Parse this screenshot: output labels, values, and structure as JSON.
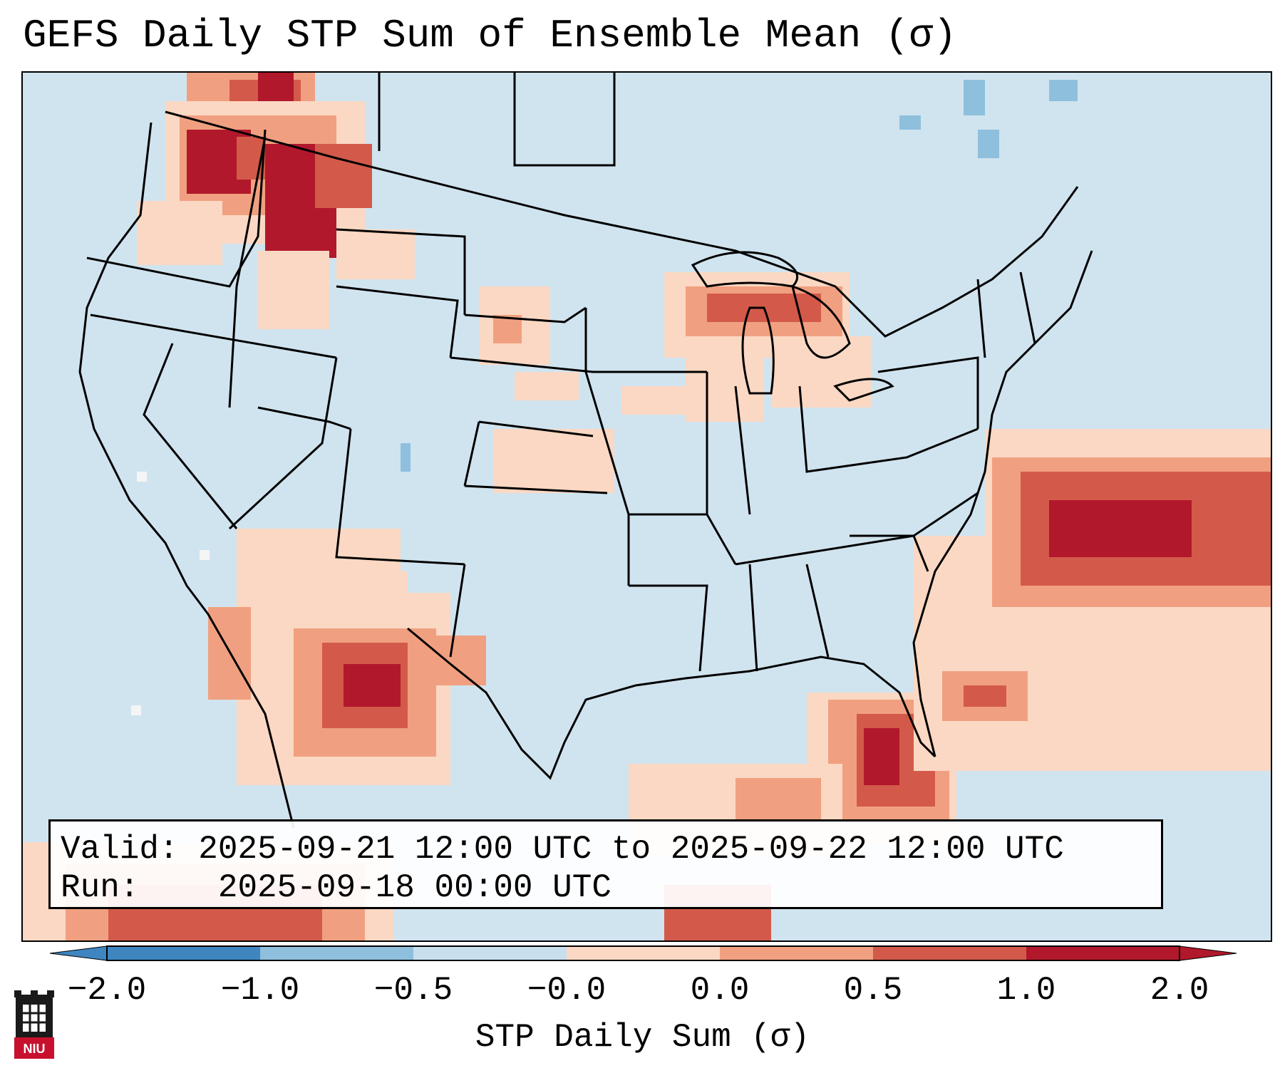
{
  "title": "GEFS Daily STP Sum of Ensemble Mean (σ)",
  "info": {
    "valid_label": "Valid:",
    "valid_value": "2025-09-21 12:00 UTC to 2025-09-22 12:00 UTC",
    "run_label": "Run:",
    "run_value": "2025-09-18 00:00 UTC"
  },
  "colorbar": {
    "label": "STP Daily Sum (σ)",
    "ticks": [
      "−2.0",
      "−1.0",
      "−0.5",
      "−0.0",
      "0.0",
      "0.5",
      "1.0",
      "2.0"
    ],
    "colors": [
      "#3f86c1",
      "#8ebfdd",
      "#c7dfed",
      "#f5f5f5",
      "#fbd8c3",
      "#f0a080",
      "#d35a4a",
      "#b2182b"
    ]
  },
  "logo": {
    "text": "NIU"
  },
  "colors": {
    "ocean": "#d0e4ef",
    "strong_red": "#b2182b",
    "red": "#d35a4a",
    "salmon": "#f0a080",
    "light_peach": "#fbd8c3",
    "light_blue": "#8ebfdd"
  }
}
